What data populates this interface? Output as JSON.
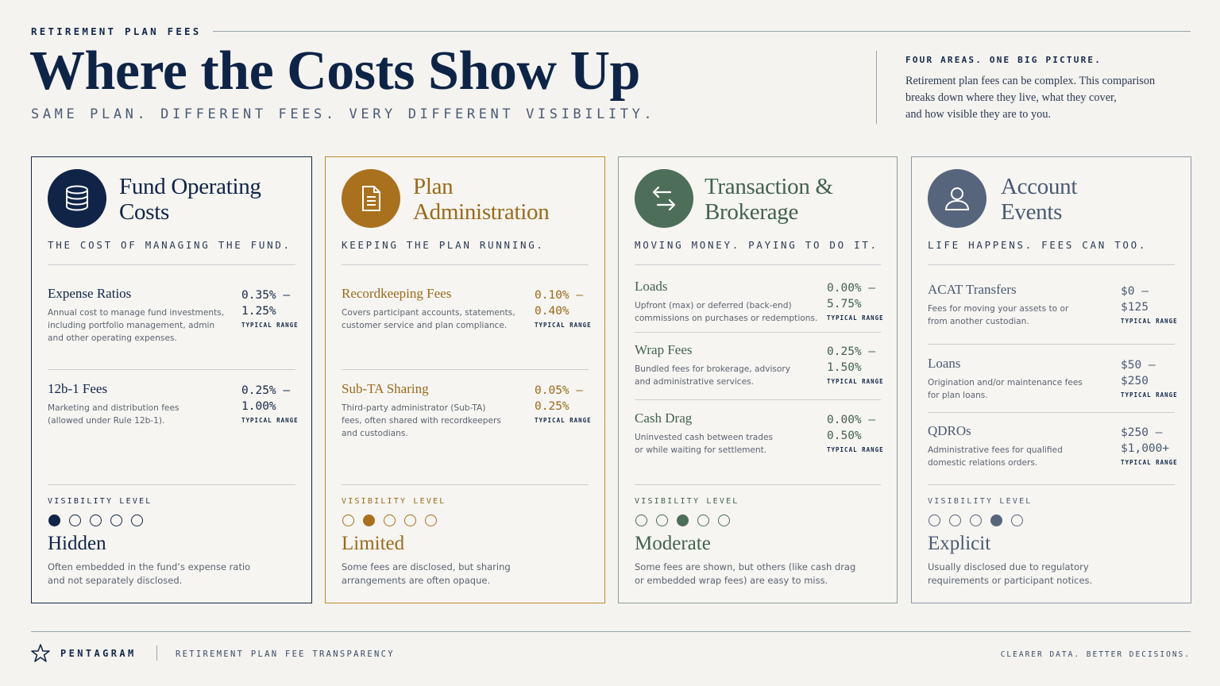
{
  "header": {
    "eyebrow": "RETIREMENT PLAN FEES",
    "title": "Where the Costs Show Up",
    "subtitle": "SAME PLAN. DIFFERENT FEES. VERY DIFFERENT VISIBILITY.",
    "intro_kicker": "FOUR AREAS. ONE BIG PICTURE.",
    "intro_lines": [
      "Retirement plan fees can be complex. This comparison",
      "breaks down where they live, what they cover,",
      "and how visible they are to you."
    ]
  },
  "cards": [
    {
      "icon": "database-icon",
      "accent": "#0f2447",
      "title_lines": [
        "Fund Operating",
        "Costs"
      ],
      "tagline": "THE COST OF MANAGING THE FUND.",
      "fees": [
        {
          "name": "Expense Ratios",
          "desc": [
            "Annual cost to manage fund investments,",
            "including portfolio management, admin",
            "and other operating expenses."
          ],
          "range": [
            "0.35% –",
            "1.25%"
          ],
          "caption": "TYPICAL RANGE"
        },
        {
          "name": "12b-1 Fees",
          "desc": [
            "Marketing and distribution fees",
            "(allowed under Rule 12b-1)."
          ],
          "range": [
            "0.25% –",
            "1.00%"
          ],
          "caption": "TYPICAL RANGE"
        }
      ],
      "visibility_label": "VISIBILITY LEVEL",
      "visibility_level": 1,
      "visibility_word": "Hidden",
      "visibility_desc": [
        "Often embedded in the fund’s expense ratio",
        "and not separately disclosed."
      ]
    },
    {
      "icon": "document-icon",
      "accent": "#a9711e",
      "title_lines": [
        "Plan",
        "Administration"
      ],
      "tagline": "KEEPING THE PLAN RUNNING.",
      "fees": [
        {
          "name": "Recordkeeping Fees",
          "desc": [
            "Covers participant accounts, statements,",
            "customer service and plan compliance."
          ],
          "range": [
            "0.10% –",
            "0.40%"
          ],
          "caption": "TYPICAL RANGE"
        },
        {
          "name": "Sub-TA Sharing",
          "desc": [
            "Third-party administrator (Sub-TA)",
            "fees, often shared with recordkeepers",
            "and custodians."
          ],
          "range": [
            "0.05% –",
            "0.25%"
          ],
          "caption": "TYPICAL RANGE"
        }
      ],
      "visibility_label": "VISIBILITY LEVEL",
      "visibility_level": 2,
      "visibility_word": "Limited",
      "visibility_desc": [
        "Some fees are disclosed, but sharing",
        "arrangements are often opaque."
      ]
    },
    {
      "icon": "transfer-arrows-icon",
      "accent": "#4d6e59",
      "title_lines": [
        "Transaction &",
        "Brokerage"
      ],
      "tagline": "MOVING MONEY. PAYING TO DO IT.",
      "fees": [
        {
          "name": "Loads",
          "desc": [
            "Upfront (max) or deferred (back-end)",
            "commissions on purchases or redemptions."
          ],
          "range": [
            "0.00% –",
            "5.75%"
          ],
          "caption": "TYPICAL RANGE"
        },
        {
          "name": "Wrap Fees",
          "desc": [
            "Bundled fees for brokerage, advisory",
            "and administrative services."
          ],
          "range": [
            "0.25% –",
            "1.50%"
          ],
          "caption": "TYPICAL RANGE"
        },
        {
          "name": "Cash Drag",
          "desc": [
            "Uninvested cash between trades",
            "or while waiting for settlement."
          ],
          "range": [
            "0.00% –",
            "0.50%"
          ],
          "caption": "TYPICAL RANGE"
        }
      ],
      "visibility_label": "VISIBILITY LEVEL",
      "visibility_level": 3,
      "visibility_word": "Moderate",
      "visibility_desc": [
        "Some fees are shown, but others (like cash drag",
        "or embedded wrap fees) are easy to miss."
      ]
    },
    {
      "icon": "user-icon",
      "accent": "#56657c",
      "title_lines": [
        "Account",
        "Events"
      ],
      "tagline": "LIFE HAPPENS. FEES CAN TOO.",
      "fees": [
        {
          "name": "ACAT Transfers",
          "desc": [
            "Fees for moving your assets to or",
            "from another custodian."
          ],
          "range": [
            "$0 –",
            "$125"
          ],
          "caption": "TYPICAL RANGE"
        },
        {
          "name": "Loans",
          "desc": [
            "Origination and/or maintenance fees",
            "for plan loans."
          ],
          "range": [
            "$50 –",
            "$250"
          ],
          "caption": "TYPICAL RANGE"
        },
        {
          "name": "QDROs",
          "desc": [
            "Administrative fees for qualified",
            "domestic relations orders."
          ],
          "range": [
            "$250 –",
            "$1,000+"
          ],
          "caption": "TYPICAL RANGE"
        }
      ],
      "visibility_label": "VISIBILITY LEVEL",
      "visibility_level": 4,
      "visibility_word": "Explicit",
      "visibility_desc": [
        "Usually disclosed due to regulatory",
        "requirements or participant notices."
      ]
    }
  ],
  "footer": {
    "logo_icon": "star-icon",
    "brand": "PENTAGRAM",
    "subtitle": "RETIREMENT PLAN FEE TRANSPARENCY",
    "tagline": "CLEARER DATA. BETTER DECISIONS."
  }
}
